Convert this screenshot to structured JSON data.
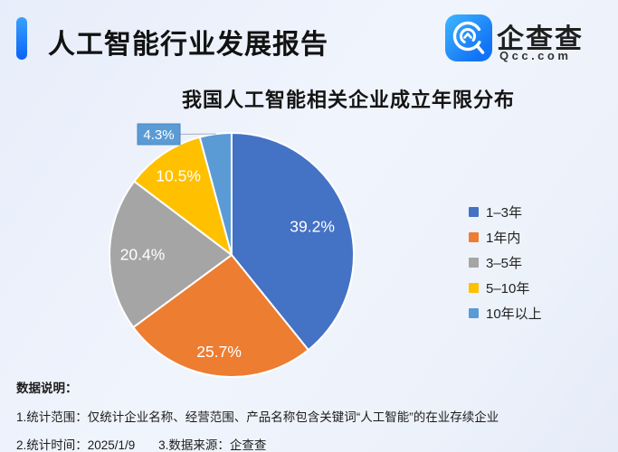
{
  "header": {
    "title": "人工智能行业发展报告",
    "accent_color": "#0b63f6"
  },
  "brand": {
    "name": "企查查",
    "domain": "Qcc.com",
    "logo_icon": "qcc-magnifier-q-icon",
    "logo_color": "#1173f5"
  },
  "chart_data": {
    "type": "pie",
    "title": "我国人工智能相关企业成立年限分布",
    "labels": [
      "1–3年",
      "1年内",
      "3–5年",
      "5–10年",
      "10年以上"
    ],
    "values": [
      39.2,
      25.7,
      20.4,
      10.5,
      4.3
    ],
    "colors": [
      "#4472C4",
      "#ED7D31",
      "#A5A5A5",
      "#FFC000",
      "#5B9BD5"
    ],
    "value_suffix": "%",
    "slice_labels": [
      "39.2%",
      "25.7%",
      "20.4%",
      "10.5%",
      "4.3%"
    ],
    "label_color": "#ffffff",
    "legend_position": "right",
    "start_angle_deg": 0,
    "callout": {
      "slice_index": 4,
      "label": "4.3%"
    }
  },
  "notes": {
    "heading": "数据说明：",
    "line1": "1.统计范围：仅统计企业名称、经营范围、产品名称包含关键词“人工智能”的在业存续企业",
    "line2a": "2.统计时间：2025/1/9",
    "line2b": "3.数据来源：企查查"
  }
}
